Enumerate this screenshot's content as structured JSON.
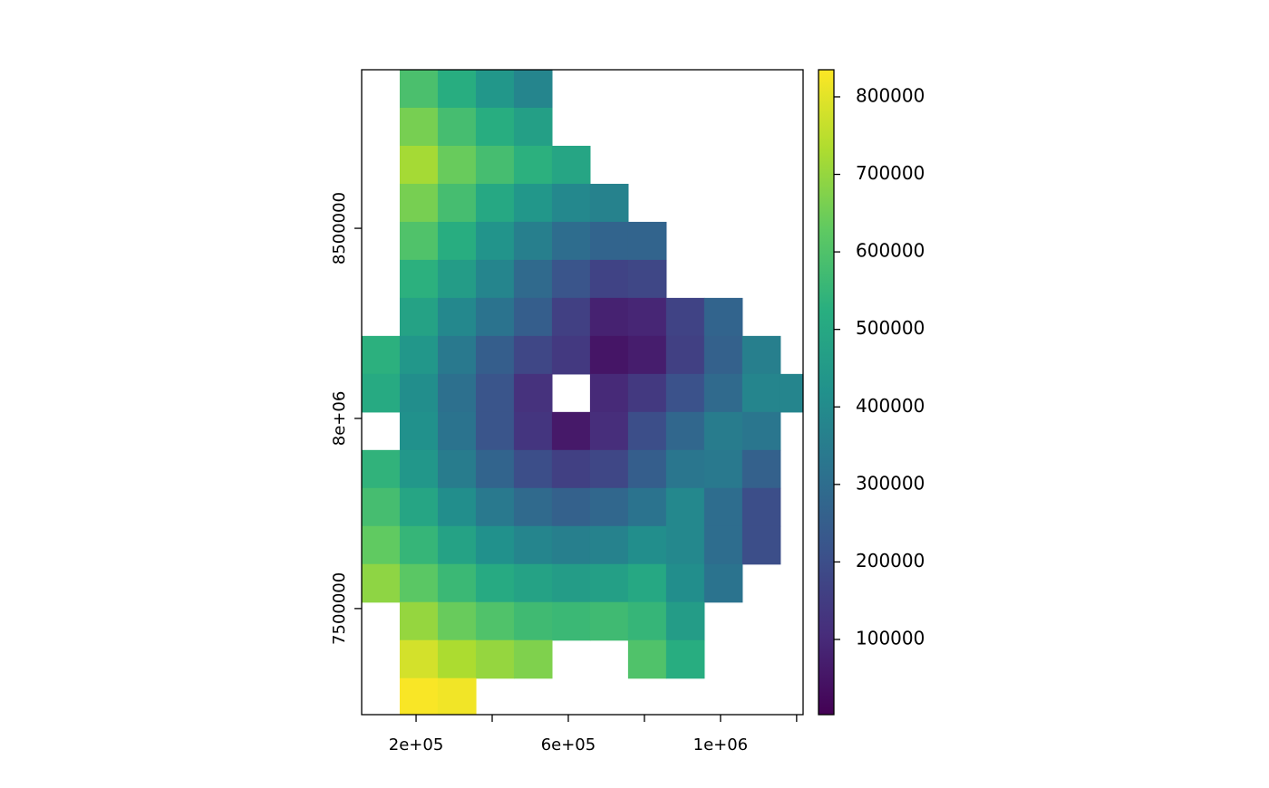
{
  "chart_data": {
    "type": "raster",
    "colormap": "viridis",
    "xlim": [
      57000,
      1217000
    ],
    "ylim": [
      7221000,
      8917000
    ],
    "xticks": [
      {
        "value": 200000,
        "label": "2e+05"
      },
      {
        "value": 400000,
        "label": null
      },
      {
        "value": 600000,
        "label": "6e+05"
      },
      {
        "value": 800000,
        "label": null
      },
      {
        "value": 1000000,
        "label": "1e+06"
      },
      {
        "value": 1200000,
        "label": null
      }
    ],
    "yticks": [
      7500000,
      {
        "value": 8000000,
        "label": "8e+06"
      },
      8500000
    ],
    "x": [
      107000,
      207000,
      307000,
      407000,
      507000,
      607000,
      707000,
      807000,
      907000,
      1007000,
      1107000,
      1207000
    ],
    "y": [
      8867000,
      8767000,
      8667000,
      8567000,
      8467000,
      8367000,
      8267000,
      8167000,
      8067000,
      7967000,
      7867000,
      7767000,
      7667000,
      7567000,
      7467000,
      7367000,
      7267000
    ],
    "values": [
      [
        null,
        590000,
        520000,
        440000,
        380000,
        null,
        null,
        null,
        null,
        null,
        null,
        null
      ],
      [
        null,
        660000,
        580000,
        520000,
        470000,
        null,
        null,
        null,
        null,
        null,
        null,
        null
      ],
      [
        null,
        720000,
        640000,
        580000,
        530000,
        490000,
        null,
        null,
        null,
        null,
        null,
        null
      ],
      [
        null,
        660000,
        580000,
        500000,
        440000,
        390000,
        370000,
        null,
        null,
        null,
        null,
        null
      ],
      [
        null,
        600000,
        520000,
        430000,
        360000,
        300000,
        270000,
        270000,
        null,
        null,
        null,
        null
      ],
      [
        null,
        530000,
        460000,
        380000,
        290000,
        220000,
        170000,
        180000,
        null,
        null,
        null,
        null
      ],
      [
        null,
        480000,
        390000,
        320000,
        250000,
        160000,
        80000,
        90000,
        170000,
        270000,
        null,
        null
      ],
      [
        530000,
        440000,
        340000,
        250000,
        180000,
        140000,
        50000,
        70000,
        160000,
        260000,
        360000,
        null
      ],
      [
        510000,
        410000,
        310000,
        220000,
        120000,
        null,
        100000,
        140000,
        210000,
        290000,
        380000,
        380000
      ],
      [
        null,
        420000,
        320000,
        220000,
        130000,
        60000,
        110000,
        200000,
        280000,
        350000,
        330000,
        null
      ],
      [
        540000,
        440000,
        350000,
        270000,
        200000,
        160000,
        180000,
        250000,
        330000,
        340000,
        260000,
        null
      ],
      [
        580000,
        490000,
        410000,
        340000,
        290000,
        260000,
        280000,
        320000,
        390000,
        300000,
        200000,
        null
      ],
      [
        630000,
        550000,
        480000,
        420000,
        380000,
        360000,
        370000,
        410000,
        390000,
        300000,
        200000,
        null
      ],
      [
        690000,
        620000,
        560000,
        510000,
        480000,
        460000,
        470000,
        500000,
        410000,
        320000,
        null,
        null
      ],
      [
        null,
        700000,
        640000,
        600000,
        570000,
        560000,
        570000,
        550000,
        460000,
        null,
        null,
        null
      ],
      [
        null,
        780000,
        730000,
        700000,
        670000,
        null,
        null,
        600000,
        520000,
        null,
        null,
        null
      ],
      [
        null,
        830000,
        820000,
        null,
        null,
        null,
        null,
        null,
        null,
        null,
        null,
        null
      ]
    ],
    "colorbar": {
      "lim": [
        3000,
        835000
      ],
      "ticks": [
        100000,
        200000,
        300000,
        400000,
        500000,
        600000,
        700000,
        800000
      ]
    }
  }
}
